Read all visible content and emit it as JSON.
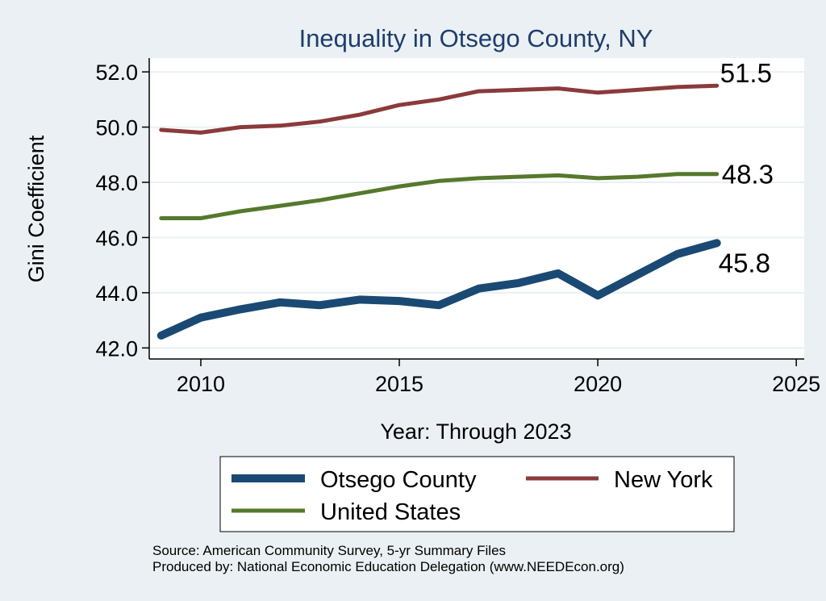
{
  "chart_data": {
    "type": "line",
    "title": "Inequality in Otsego County, NY",
    "xlabel": "Year: Through 2023",
    "ylabel": "Gini Coefficient",
    "xlim": [
      2008.7,
      2025.2
    ],
    "ylim": [
      41.6,
      52.5
    ],
    "xticks": [
      2010,
      2015,
      2020,
      2025
    ],
    "yticks": [
      42.0,
      44.0,
      46.0,
      48.0,
      50.0,
      52.0
    ],
    "ytick_labels": [
      "42.0",
      "44.0",
      "46.0",
      "48.0",
      "50.0",
      "52.0"
    ],
    "xtick_labels": [
      "2010",
      "2015",
      "2020",
      "2025"
    ],
    "grid": true,
    "x": [
      2009,
      2010,
      2011,
      2012,
      2013,
      2014,
      2015,
      2016,
      2017,
      2018,
      2019,
      2020,
      2021,
      2022,
      2023
    ],
    "series": [
      {
        "name": "Otsego County",
        "color": "#1a4a73",
        "values": [
          42.45,
          43.1,
          43.4,
          43.65,
          43.55,
          43.75,
          43.7,
          43.55,
          44.15,
          44.35,
          44.7,
          43.9,
          44.65,
          45.4,
          45.8
        ],
        "end_label": "45.8"
      },
      {
        "name": "New York",
        "color": "#8b3a3a",
        "values": [
          49.9,
          49.8,
          50.0,
          50.05,
          50.2,
          50.45,
          50.8,
          51.0,
          51.3,
          51.35,
          51.4,
          51.25,
          51.35,
          51.45,
          51.5
        ],
        "end_label": "51.5"
      },
      {
        "name": "United States",
        "color": "#55792d",
        "values": [
          46.7,
          46.7,
          46.95,
          47.15,
          47.35,
          47.6,
          47.85,
          48.05,
          48.15,
          48.2,
          48.25,
          48.15,
          48.2,
          48.3,
          48.3
        ],
        "end_label": "48.3"
      }
    ],
    "legend": {
      "placement": "bottom",
      "entries": [
        "Otsego County",
        "New York",
        "United States"
      ]
    },
    "source_lines": [
      "Source: American Community Survey, 5-yr Summary Files",
      "Produced by: National Economic Education Delegation (www.NEEDEcon.org)"
    ]
  }
}
